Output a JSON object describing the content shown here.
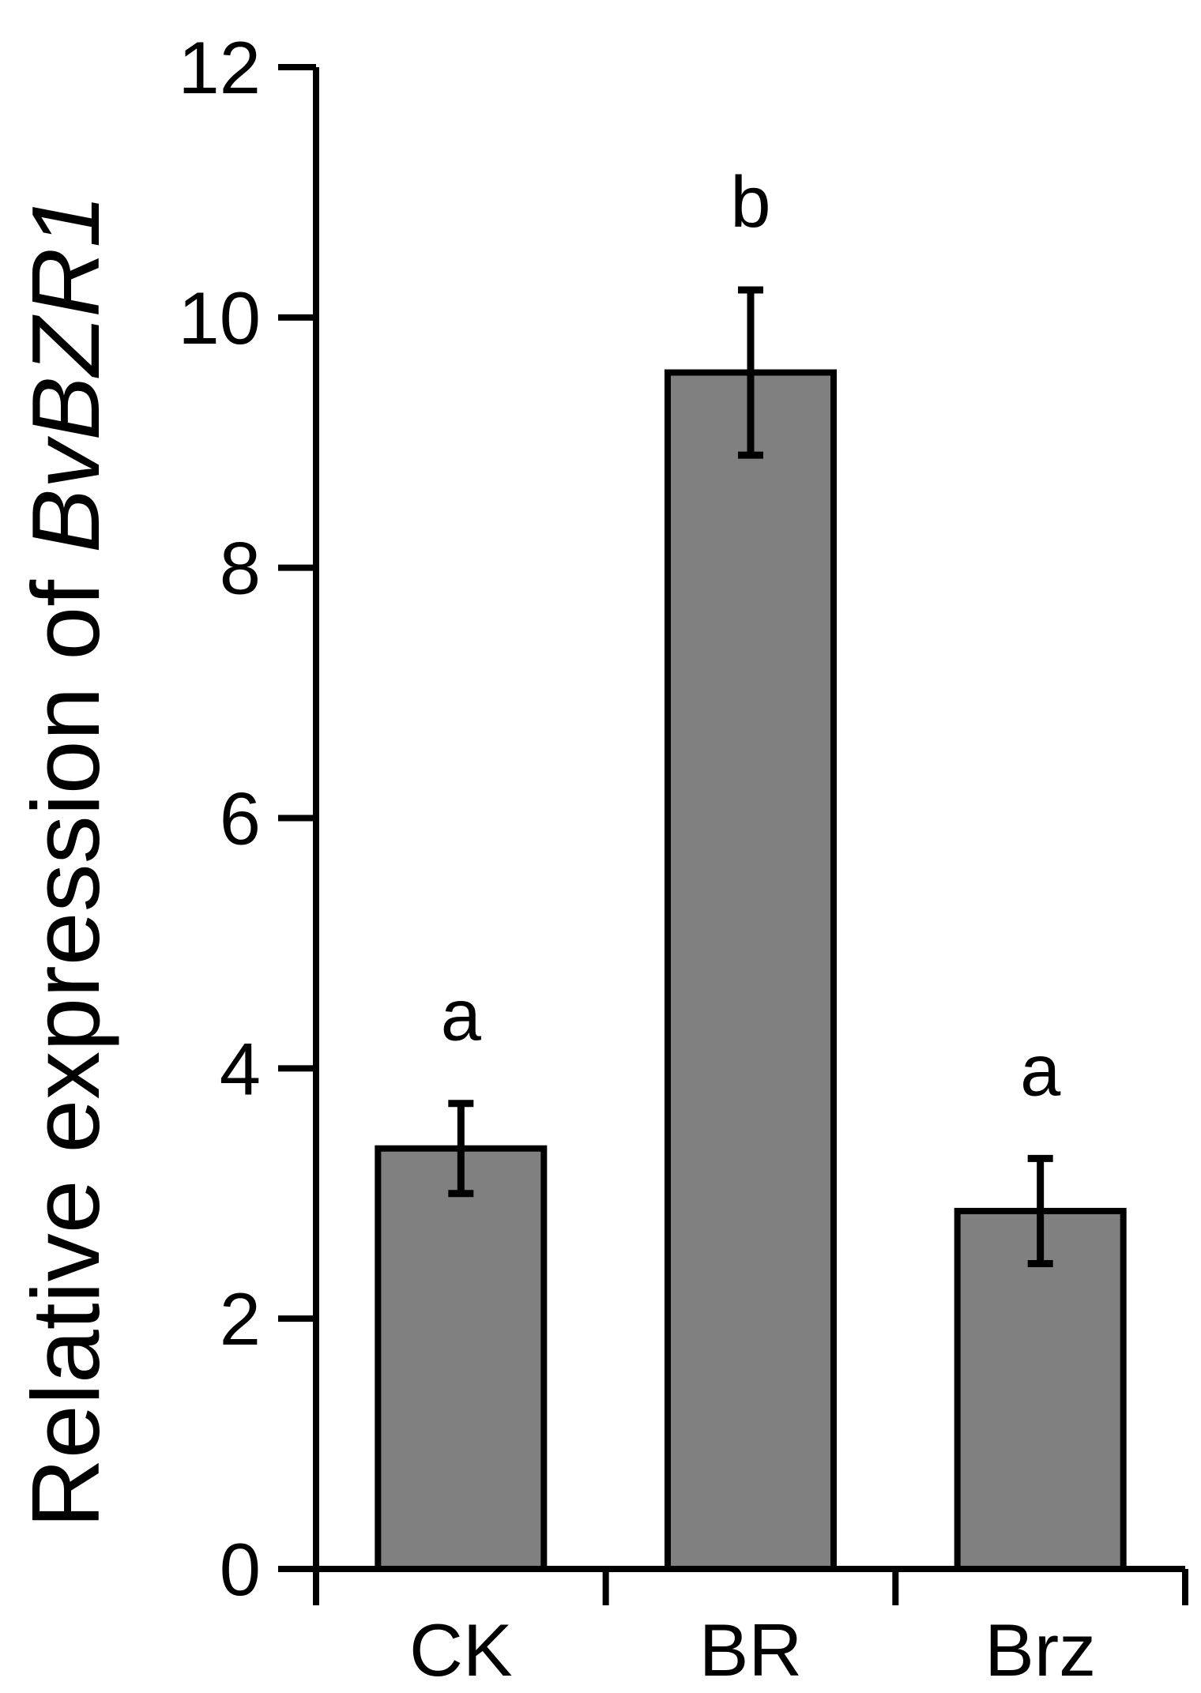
{
  "chart_data": {
    "type": "bar",
    "title": "",
    "xlabel": "",
    "ylabel": {
      "prefix": "Relative expression of ",
      "gene": "BvBZR1"
    },
    "ylim": [
      0,
      12
    ],
    "yticks": [
      0,
      2,
      4,
      6,
      8,
      10,
      12
    ],
    "categories": [
      "CK",
      "BR",
      "Brz"
    ],
    "values": [
      3.36,
      9.56,
      2.86
    ],
    "errors": [
      0.36,
      0.66,
      0.42
    ],
    "significance": [
      "a",
      "b",
      "a"
    ],
    "bar_color": "#808080",
    "edge_color": "#000000",
    "grid": false,
    "legend": "none"
  }
}
